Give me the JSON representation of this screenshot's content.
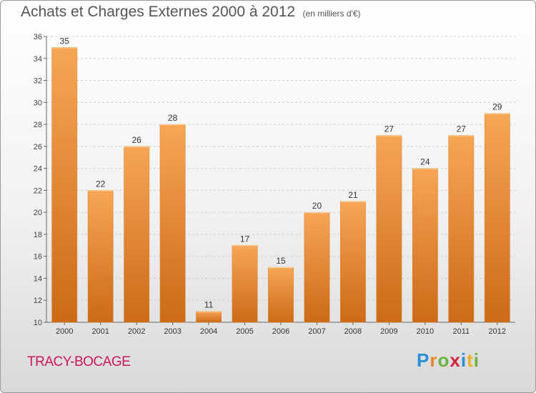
{
  "title": "Achats et Charges Externes 2000 à 2012",
  "unit_note": "(en milliers d'€)",
  "commune": "TRACY-BOCAGE",
  "logo": {
    "letters": [
      "P",
      "r",
      "o",
      "x",
      "i",
      "t",
      "i"
    ],
    "colors": [
      "#2a8fd4",
      "#e8852a",
      "#6ab33e",
      "#d4243c",
      "#2a8fd4",
      "#e8b32a",
      "#6ab33e"
    ]
  },
  "chart_data": {
    "type": "bar",
    "categories": [
      "2000",
      "2001",
      "2002",
      "2003",
      "2004",
      "2005",
      "2006",
      "2007",
      "2008",
      "2009",
      "2010",
      "2011",
      "2012"
    ],
    "values": [
      35,
      22,
      26,
      28,
      11,
      17,
      15,
      20,
      21,
      27,
      24,
      27,
      29
    ],
    "data_labels": [
      "35",
      "22",
      "26",
      "28",
      "11",
      "17",
      "15",
      "20",
      "21",
      "27",
      "24",
      "27",
      "29"
    ],
    "ylim": [
      10,
      36
    ],
    "yticks": [
      10,
      12,
      14,
      16,
      18,
      20,
      22,
      24,
      26,
      28,
      30,
      32,
      34,
      36
    ],
    "grid": true,
    "bar_color": "#f2a04c",
    "bar_color_dark": "#cc6a17"
  }
}
